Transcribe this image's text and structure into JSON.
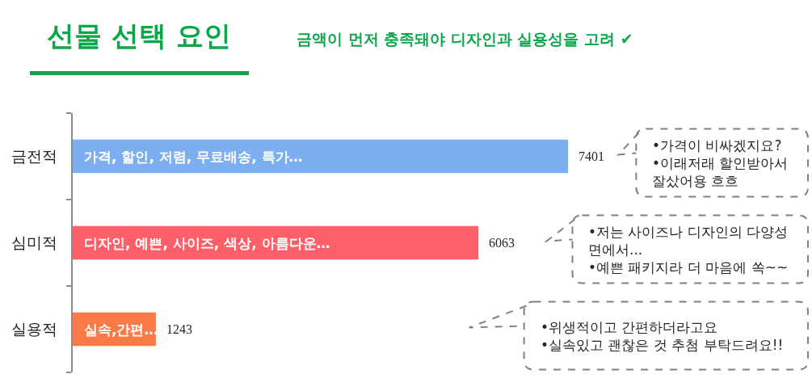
{
  "chart_data": {
    "type": "bar",
    "orientation": "horizontal",
    "title": "선물 선택 요인",
    "subtitle": "금액이 먼저 충족돼야 디자인과 실용성을 고려 ✔",
    "categories": [
      "금전적",
      "심미적",
      "실용적"
    ],
    "values": [
      7401,
      6063,
      1243
    ],
    "colors": [
      "#7caef0",
      "#ff5f69",
      "#f97a47"
    ],
    "data_labels": true,
    "annotations": [
      "가격, 할인, 저렴, 무료배송, 특가…",
      "디자인, 예쁜, 사이즈, 색상, 아름다운…",
      "실속,간편…",
      "•가격이 비싸겠지요?\n•이래저래 할인받아서\n잘샀어용 흐흐",
      "•저는 사이즈나 디자인의 다양성\n면에서...\n•예쁜 패키지라 더 마음에 쏙~~",
      "•위생적이고 간편하더라고요\n•실속있고 괜찮은 것 추첨 부탁드려요!!"
    ]
  }
}
